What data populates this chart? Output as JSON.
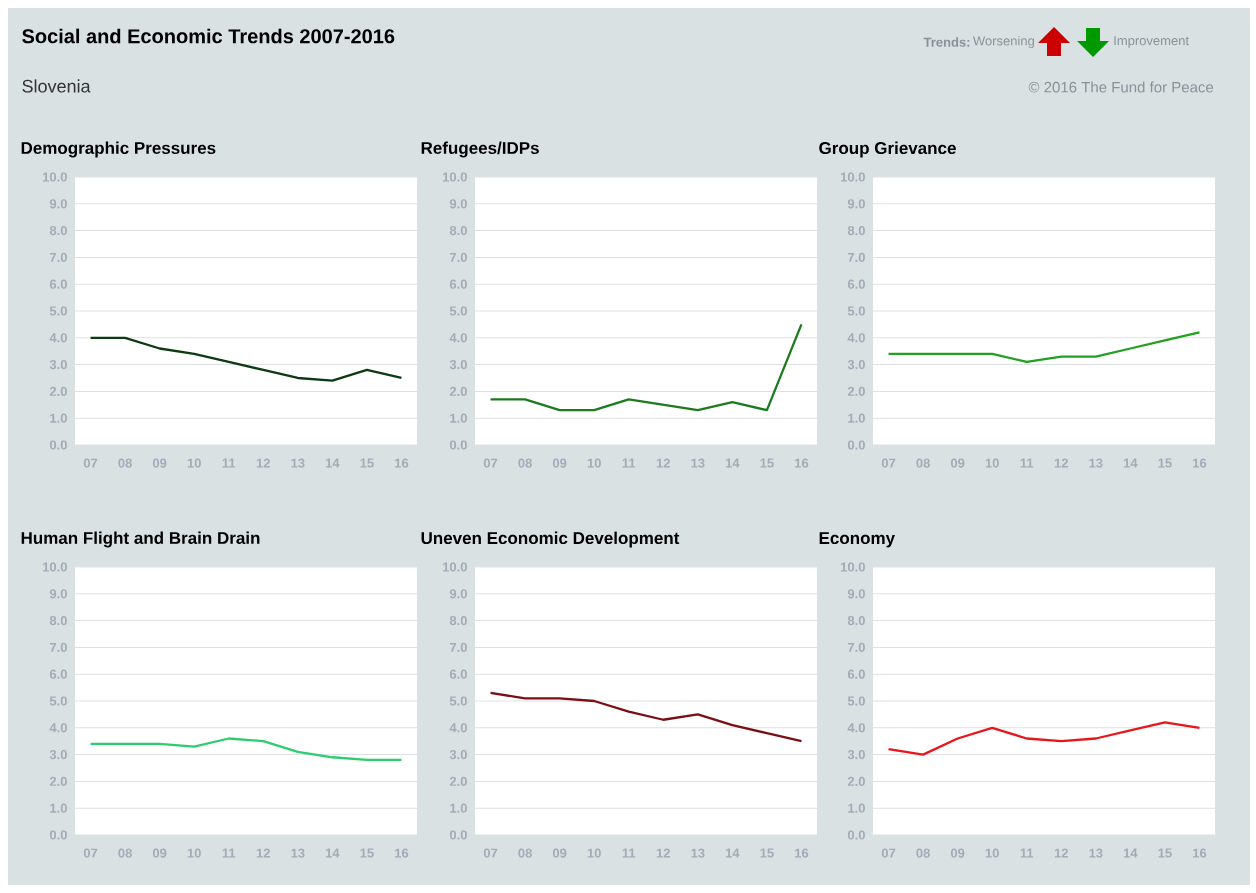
{
  "chart_data": [
    {
      "type": "other",
      "title": "Social and Economic Trends 2007-2016",
      "subtitle": "Slovenia",
      "annotations": [
        "Trends:",
        "Worsening",
        "Improvement",
        "© 2016 The Fund for Peace"
      ]
    },
    {
      "type": "line",
      "title": "Demographic Pressures",
      "categories": [
        "07",
        "08",
        "09",
        "10",
        "11",
        "12",
        "13",
        "14",
        "15",
        "16"
      ],
      "values": [
        4.0,
        4.0,
        3.6,
        3.4,
        3.1,
        2.8,
        2.5,
        2.4,
        2.8,
        2.5
      ],
      "color": "#0d3a12",
      "ylim": [
        0,
        10
      ],
      "yticks": [
        {
          "value": 0,
          "label": "0.0"
        },
        {
          "value": 1,
          "label": "1.0"
        },
        {
          "value": 2,
          "label": "2.0"
        },
        {
          "value": 3,
          "label": "3.0"
        },
        {
          "value": 4,
          "label": "4.0"
        },
        {
          "value": 5,
          "label": "5.0"
        },
        {
          "value": 6,
          "label": "6.0"
        },
        {
          "value": 7,
          "label": "7.0"
        },
        {
          "value": 8,
          "label": "8.0"
        },
        {
          "value": 9,
          "label": "9.0"
        },
        {
          "value": 10,
          "label": "10.0"
        }
      ],
      "grid": "y"
    },
    {
      "type": "line",
      "title": "Refugees/IDPs",
      "categories": [
        "07",
        "08",
        "09",
        "10",
        "11",
        "12",
        "13",
        "14",
        "15",
        "16"
      ],
      "values": [
        1.7,
        1.7,
        1.3,
        1.3,
        1.7,
        1.5,
        1.3,
        1.6,
        1.3,
        4.5
      ],
      "color": "#1e7a1e",
      "ylim": [
        0,
        10
      ],
      "yticks": [
        {
          "value": 0,
          "label": "0.0"
        },
        {
          "value": 1,
          "label": "1.0"
        },
        {
          "value": 2,
          "label": "2.0"
        },
        {
          "value": 3,
          "label": "3.0"
        },
        {
          "value": 4,
          "label": "4.0"
        },
        {
          "value": 5,
          "label": "5.0"
        },
        {
          "value": 6,
          "label": "6.0"
        },
        {
          "value": 7,
          "label": "7.0"
        },
        {
          "value": 8,
          "label": "8.0"
        },
        {
          "value": 9,
          "label": "9.0"
        },
        {
          "value": 10,
          "label": "10.0"
        }
      ],
      "grid": "y"
    },
    {
      "type": "line",
      "title": "Group Grievance",
      "categories": [
        "07",
        "08",
        "09",
        "10",
        "11",
        "12",
        "13",
        "14",
        "15",
        "16"
      ],
      "values": [
        3.4,
        3.4,
        3.4,
        3.4,
        3.1,
        3.3,
        3.3,
        3.6,
        3.9,
        4.2
      ],
      "color": "#22a022",
      "ylim": [
        0,
        10
      ],
      "yticks": [
        {
          "value": 0,
          "label": "0.0"
        },
        {
          "value": 1,
          "label": "1.0"
        },
        {
          "value": 2,
          "label": "2.0"
        },
        {
          "value": 3,
          "label": "3.0"
        },
        {
          "value": 4,
          "label": "4.0"
        },
        {
          "value": 5,
          "label": "5.0"
        },
        {
          "value": 6,
          "label": "6.0"
        },
        {
          "value": 7,
          "label": "7.0"
        },
        {
          "value": 8,
          "label": "8.0"
        },
        {
          "value": 9,
          "label": "9.0"
        },
        {
          "value": 10,
          "label": "10.0"
        }
      ],
      "grid": "y"
    },
    {
      "type": "line",
      "title": "Human Flight and Brain Drain",
      "categories": [
        "07",
        "08",
        "09",
        "10",
        "11",
        "12",
        "13",
        "14",
        "15",
        "16"
      ],
      "values": [
        3.4,
        3.4,
        3.4,
        3.3,
        3.6,
        3.5,
        3.1,
        2.9,
        2.8,
        2.8
      ],
      "color": "#2ecc71",
      "ylim": [
        0,
        10
      ],
      "yticks": [
        {
          "value": 0,
          "label": "0.0"
        },
        {
          "value": 1,
          "label": "1.0"
        },
        {
          "value": 2,
          "label": "2.0"
        },
        {
          "value": 3,
          "label": "3.0"
        },
        {
          "value": 4,
          "label": "4.0"
        },
        {
          "value": 5,
          "label": "5.0"
        },
        {
          "value": 6,
          "label": "6.0"
        },
        {
          "value": 7,
          "label": "7.0"
        },
        {
          "value": 8,
          "label": "8.0"
        },
        {
          "value": 9,
          "label": "9.0"
        },
        {
          "value": 10,
          "label": "10.0"
        }
      ],
      "grid": "y"
    },
    {
      "type": "line",
      "title": "Uneven Economic Development",
      "categories": [
        "07",
        "08",
        "09",
        "10",
        "11",
        "12",
        "13",
        "14",
        "15",
        "16"
      ],
      "values": [
        5.3,
        5.1,
        5.1,
        5.0,
        4.6,
        4.3,
        4.5,
        4.1,
        3.8,
        3.5
      ],
      "color": "#7a0f14",
      "ylim": [
        0,
        10
      ],
      "yticks": [
        {
          "value": 0,
          "label": "0.0"
        },
        {
          "value": 1,
          "label": "1.0"
        },
        {
          "value": 2,
          "label": "2.0"
        },
        {
          "value": 3,
          "label": "3.0"
        },
        {
          "value": 4,
          "label": "4.0"
        },
        {
          "value": 5,
          "label": "5.0"
        },
        {
          "value": 6,
          "label": "6.0"
        },
        {
          "value": 7,
          "label": "7.0"
        },
        {
          "value": 8,
          "label": "8.0"
        },
        {
          "value": 9,
          "label": "9.0"
        },
        {
          "value": 10,
          "label": "10.0"
        }
      ],
      "grid": "y"
    },
    {
      "type": "line",
      "title": "Economy",
      "categories": [
        "07",
        "08",
        "09",
        "10",
        "11",
        "12",
        "13",
        "14",
        "15",
        "16"
      ],
      "values": [
        3.2,
        3.0,
        3.6,
        4.0,
        3.6,
        3.5,
        3.6,
        3.9,
        4.2,
        4.0
      ],
      "color": "#e8161b",
      "ylim": [
        0,
        10
      ],
      "yticks": [
        {
          "value": 0,
          "label": "0.0"
        },
        {
          "value": 1,
          "label": "1.0"
        },
        {
          "value": 2,
          "label": "2.0"
        },
        {
          "value": 3,
          "label": "3.0"
        },
        {
          "value": 4,
          "label": "4.0"
        },
        {
          "value": 5,
          "label": "5.0"
        },
        {
          "value": 6,
          "label": "6.0"
        },
        {
          "value": 7,
          "label": "7.0"
        },
        {
          "value": 8,
          "label": "8.0"
        },
        {
          "value": 9,
          "label": "9.0"
        },
        {
          "value": 10,
          "label": "10.0"
        }
      ],
      "grid": "y"
    }
  ]
}
